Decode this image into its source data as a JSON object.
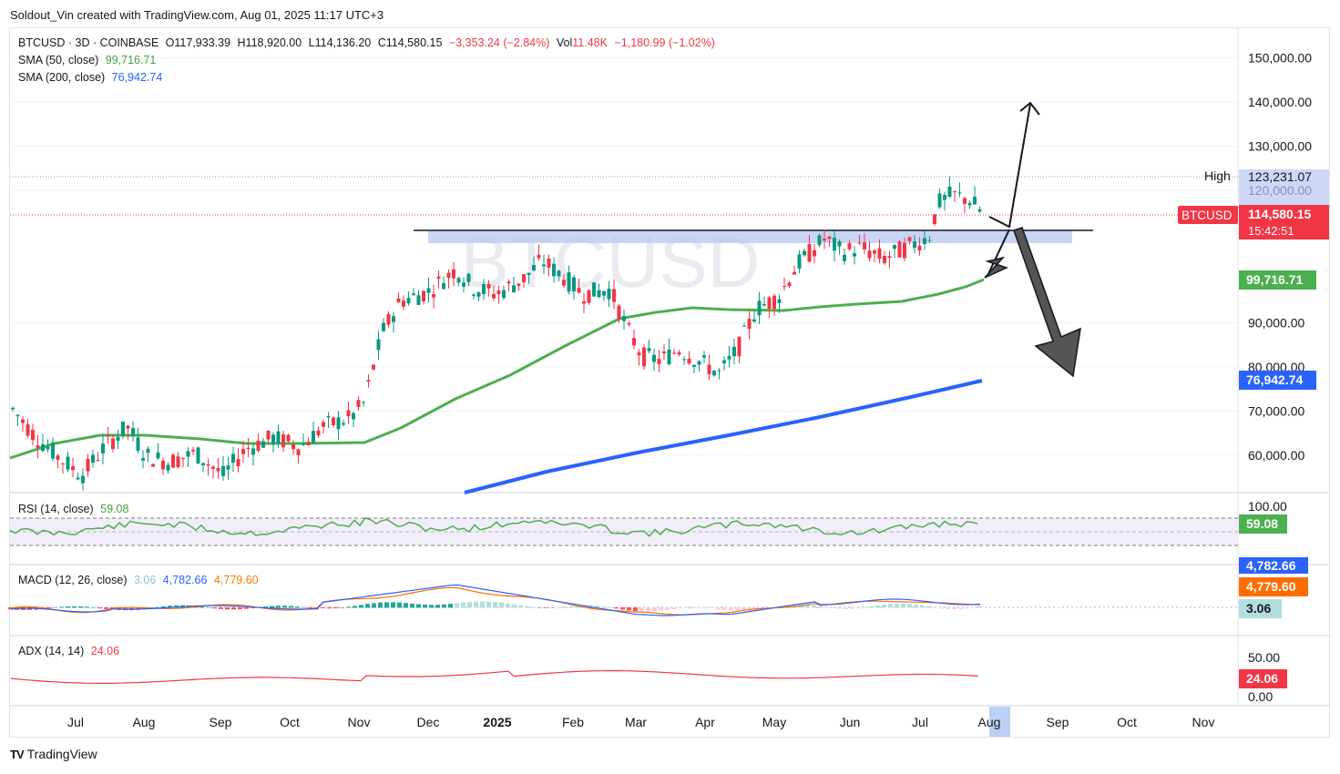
{
  "attribution": "Soldout_Vin created with TradingView.com, Aug 01, 2025 11:17 UTC+3",
  "branding": "TradingView",
  "header": {
    "symbol": "BTCUSD · 3D · COINBASE",
    "open": "O117,933.39",
    "high": "H118,920.00",
    "low": "L114,136.20",
    "close": "C114,580.15",
    "change": "−3,353.24 (−2.84%)",
    "vol_label": "Vol",
    "vol": "11.48K",
    "vol_change": "−1,180.99 (−1.02%)",
    "sma50_label": "SMA (50, close)",
    "sma50_value": "99,716.71",
    "sma200_label": "SMA (200, close)",
    "sma200_value": "76,942.74"
  },
  "watermark": "BTCUSD",
  "price_axis": {
    "ticks": [
      "150,000.00",
      "140,000.00",
      "130,000.00",
      "120,000.00",
      "90,000.00",
      "80,000.00",
      "70,000.00",
      "60,000.00"
    ],
    "tick_values": [
      150000,
      140000,
      130000,
      120000,
      90000,
      80000,
      70000,
      60000
    ],
    "high_label": "High",
    "high_value": "123,231.07",
    "price_tag_symbol": "BTCUSD",
    "price_tag_value": "114,580.15",
    "countdown": "15:42:51",
    "sma50_tag": "99,716.71",
    "sma200_tag": "76,942.74"
  },
  "rsi": {
    "label": "RSI (14, close)",
    "value": "59.08",
    "axis_top": "100.00"
  },
  "macd": {
    "label": "MACD (12, 26, close)",
    "hist": "3.06",
    "macd": "4,782.66",
    "signal": "4,779.60",
    "tag_macd": "4,782.66",
    "tag_signal": "4,779.60",
    "tag_hist": "3.06"
  },
  "adx": {
    "label": "ADX (14, 14)",
    "value": "24.06",
    "axis_top": "50.00",
    "axis_bottom": "0.00"
  },
  "time_axis": [
    "Jul",
    "Aug",
    "Sep",
    "Oct",
    "Nov",
    "Dec",
    "2025",
    "Feb",
    "Mar",
    "Apr",
    "May",
    "Jun",
    "Jul",
    "Aug",
    "Sep",
    "Oct",
    "Nov"
  ],
  "colors": {
    "up": "#089981",
    "down": "#f23645",
    "sma50": "#4caf50",
    "sma200": "#2962ff",
    "rsi": "#4caf50",
    "macd": "#2962ff",
    "signal": "#ff6d00",
    "adx": "#f23645"
  },
  "chart_data": {
    "type": "candlestick",
    "title": "BTCUSD · 3D · COINBASE",
    "ylim": [
      52000,
      158000
    ],
    "candles_approx": [
      [
        "2024-06-16",
        71000,
        72000,
        66000,
        67000
      ],
      [
        "2024-06-28",
        63000,
        64500,
        60000,
        62000
      ],
      [
        "2024-07-10",
        57000,
        59000,
        53500,
        56000
      ],
      [
        "2024-07-22",
        62000,
        68000,
        61000,
        67000
      ],
      [
        "2024-08-03",
        69000,
        70000,
        57000,
        60000
      ],
      [
        "2024-08-15",
        59000,
        61500,
        57500,
        61000
      ],
      [
        "2024-08-27",
        59000,
        60000,
        53000,
        55000
      ],
      [
        "2024-09-08",
        56000,
        60000,
        54500,
        58500
      ],
      [
        "2024-09-20",
        63000,
        65500,
        62000,
        64000
      ],
      [
        "2024-10-02",
        61000,
        63000,
        59500,
        62500
      ],
      [
        "2024-10-14",
        65000,
        69000,
        64500,
        68000
      ],
      [
        "2024-10-26",
        68000,
        73000,
        66500,
        69000
      ],
      [
        "2024-11-07",
        76000,
        90000,
        75000,
        88000
      ],
      [
        "2024-11-19",
        92000,
        99000,
        90500,
        96000
      ],
      [
        "2024-12-01",
        97000,
        100000,
        94000,
        98000
      ],
      [
        "2024-12-16",
        104000,
        108000,
        100000,
        101000
      ],
      [
        "2025-01-01",
        94000,
        98000,
        91000,
        96000
      ],
      [
        "2025-01-13",
        95000,
        105000,
        89500,
        102000
      ],
      [
        "2025-01-22",
        106000,
        109000,
        100500,
        103000
      ],
      [
        "2025-02-03",
        98000,
        101000,
        91000,
        96500
      ],
      [
        "2025-02-24",
        90000,
        92000,
        78000,
        84000
      ],
      [
        "2025-03-10",
        81000,
        86000,
        76500,
        83000
      ],
      [
        "2025-03-25",
        87000,
        88500,
        81000,
        85000
      ],
      [
        "2025-04-07",
        78000,
        82000,
        74500,
        79000
      ],
      [
        "2025-04-22",
        87000,
        95000,
        86500,
        94000
      ],
      [
        "2025-05-04",
        95000,
        97500,
        93000,
        96500
      ],
      [
        "2025-05-16",
        103000,
        107000,
        101000,
        104000
      ],
      [
        "2025-05-25",
        108000,
        111900,
        104000,
        107000
      ],
      [
        "2025-06-06",
        104000,
        110000,
        100500,
        105000
      ],
      [
        "2025-06-18",
        104000,
        106000,
        98200,
        103000
      ],
      [
        "2025-06-27",
        107000,
        108500,
        104500,
        108000
      ],
      [
        "2025-07-09",
        111000,
        123231,
        109000,
        117000
      ],
      [
        "2025-07-21",
        118000,
        119700,
        114500,
        117933
      ],
      [
        "2025-07-30",
        117933,
        118920,
        114136,
        114580
      ]
    ],
    "sma50_end": 99716.71,
    "sma200_end": 76942.74,
    "resistance_level": 111000,
    "rsi_value": 59.08,
    "macd_value": 4782.66,
    "signal_value": 4779.6,
    "hist_value": 3.06,
    "adx_value": 24.06
  }
}
